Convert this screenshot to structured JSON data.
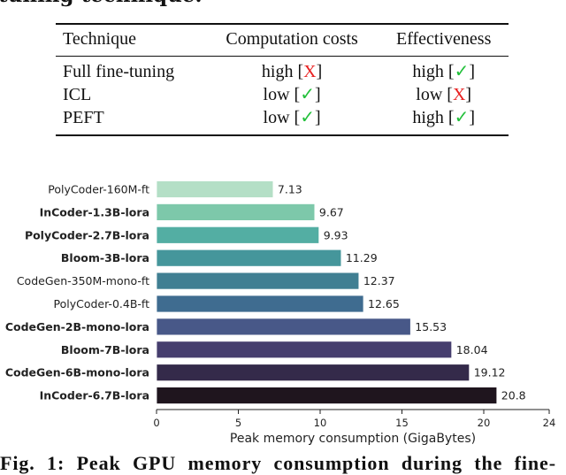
{
  "top_text": "tuning technique.",
  "table": {
    "headers": [
      "Technique",
      "Computation costs",
      "Effectiveness"
    ],
    "rows": [
      {
        "technique": "Full fine-tuning",
        "cost": "high",
        "cost_mark": "X",
        "cost_good": false,
        "eff": "high",
        "eff_mark": "✓",
        "eff_good": true
      },
      {
        "technique": "ICL",
        "cost": "low",
        "cost_mark": "✓",
        "cost_good": true,
        "eff": "low",
        "eff_mark": "X",
        "eff_good": false
      },
      {
        "technique": "PEFT",
        "cost": "low",
        "cost_mark": "✓",
        "cost_good": true,
        "eff": "high",
        "eff_mark": "✓",
        "eff_good": true
      }
    ]
  },
  "chart_data": {
    "type": "bar",
    "orientation": "horizontal",
    "categories": [
      "PolyCoder-160M-ft",
      "InCoder-1.3B-lora",
      "PolyCoder-2.7B-lora",
      "Bloom-3B-lora",
      "CodeGen-350M-mono-ft",
      "PolyCoder-0.4B-ft",
      "CodeGen-2B-mono-lora",
      "Bloom-7B-lora",
      "CodeGen-6B-mono-lora",
      "InCoder-6.7B-lora"
    ],
    "bold": [
      false,
      true,
      true,
      true,
      false,
      false,
      true,
      true,
      true,
      true
    ],
    "values": [
      7.13,
      9.67,
      9.93,
      11.29,
      12.37,
      12.65,
      15.53,
      18.04,
      19.12,
      20.8
    ],
    "value_labels": [
      "7.13",
      "9.67",
      "9.93",
      "11.29",
      "12.37",
      "12.65",
      "15.53",
      "18.04",
      "19.12",
      "20.8"
    ],
    "colors": [
      "#b4dfc6",
      "#7dc8aa",
      "#53aea3",
      "#45969b",
      "#407f92",
      "#3f6c90",
      "#485888",
      "#463e6e",
      "#342a4a",
      "#1f151e"
    ],
    "xlabel": "Peak memory consumption (GigaBytes)",
    "xticks": [
      0,
      5,
      10,
      15,
      20,
      24
    ],
    "xlim": [
      0,
      24
    ],
    "grid": false
  },
  "caption": "Fig. 1: Peak GPU memory consumption during the fine-"
}
